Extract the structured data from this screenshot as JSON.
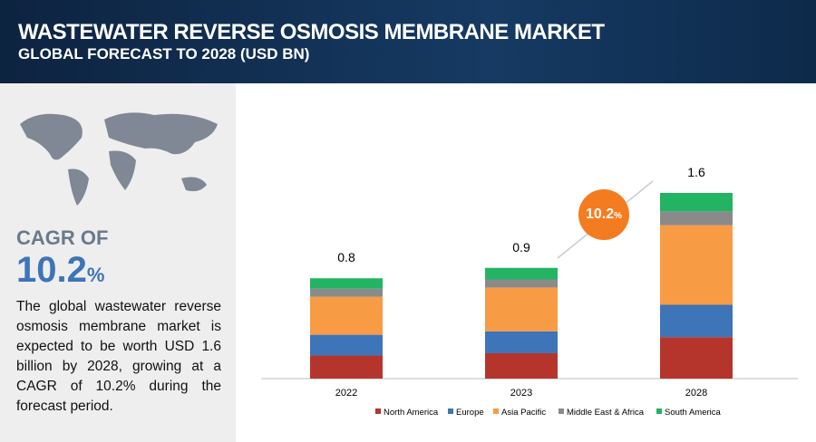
{
  "header": {
    "title": "WASTEWATER REVERSE OSMOSIS MEMBRANE MARKET",
    "subtitle": "GLOBAL FORECAST TO 2028 (USD BN)"
  },
  "sidebar": {
    "cagr_label": "CAGR OF",
    "cagr_value": "10.2",
    "cagr_unit": "%",
    "description": "The global wastewater reverse osmosis membrane market is expected to be worth USD 1.6 billion by 2028, growing at a CAGR of 10.2% during the forecast period."
  },
  "badge": {
    "value": "10.2",
    "unit": "%"
  },
  "chart_data": {
    "type": "bar",
    "stacked": true,
    "categories": [
      "2022",
      "2023",
      "2028"
    ],
    "series": [
      {
        "name": "North America",
        "color": "#b5352d",
        "values": [
          0.2,
          0.22,
          0.36
        ]
      },
      {
        "name": "Europe",
        "color": "#3e74b8",
        "values": [
          0.18,
          0.19,
          0.28
        ]
      },
      {
        "name": "Asia Pacific",
        "color": "#f79b45",
        "values": [
          0.33,
          0.38,
          0.69
        ]
      },
      {
        "name": "Middle East & Africa",
        "color": "#8a8a8a",
        "values": [
          0.07,
          0.07,
          0.12
        ]
      },
      {
        "name": "South America",
        "color": "#22b462",
        "values": [
          0.09,
          0.1,
          0.16
        ]
      }
    ],
    "totals": [
      0.8,
      0.9,
      1.6
    ]
  }
}
